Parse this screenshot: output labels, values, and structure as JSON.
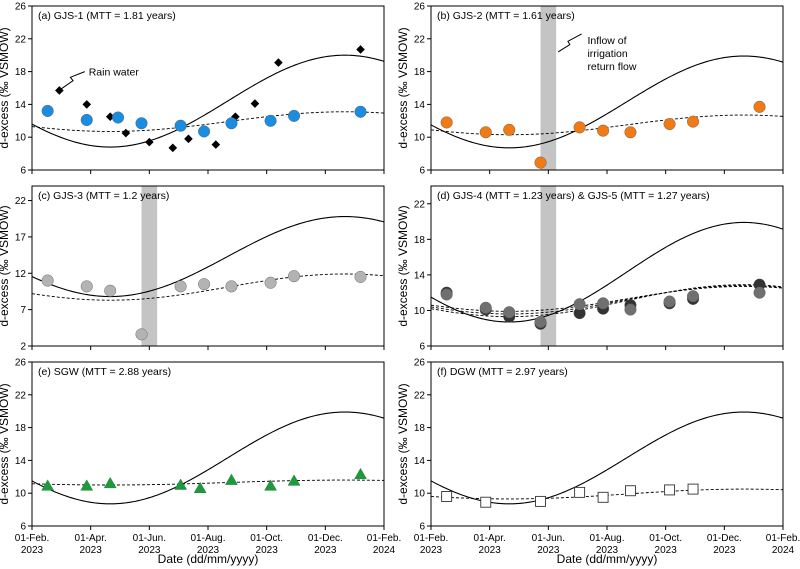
{
  "figure": {
    "x_axis_label": "Date (dd/mm/yyyy)",
    "y_axis_label": "d-excess (‰ VSMOW)"
  },
  "x_ticks": [
    {
      "t": 0,
      "line1": "01-Feb.",
      "line2": "2023"
    },
    {
      "t": 1.5,
      "line1": "01-Apr.",
      "line2": "2023"
    },
    {
      "t": 3,
      "line1": "01-Jun.",
      "line2": "2023"
    },
    {
      "t": 4.5,
      "line1": "01-Aug.",
      "line2": "2023"
    },
    {
      "t": 6,
      "line1": "01-Oct.",
      "line2": "2023"
    },
    {
      "t": 7.5,
      "line1": "01-Dec.",
      "line2": "2023"
    },
    {
      "t": 9,
      "line1": "01-Feb.",
      "line2": "2024"
    }
  ],
  "chart_data": [
    {
      "id": "a",
      "type": "scatter",
      "title": "(a) GJS-1 (MTT = 1.81 years)",
      "ylim": [
        6,
        26
      ],
      "yticks": [
        6,
        10,
        14,
        18,
        22,
        26
      ],
      "annotations": [
        {
          "text": "Rain water"
        }
      ],
      "series": [
        {
          "name": "Rain water",
          "marker": "diamond",
          "color": "#000000",
          "x": [
            0.7,
            1.4,
            2.0,
            2.4,
            3.0,
            3.6,
            4.0,
            4.7,
            5.2,
            5.7,
            6.3,
            8.4
          ],
          "y": [
            15.7,
            14.0,
            12.5,
            10.5,
            9.4,
            8.7,
            9.8,
            9.1,
            12.5,
            14.1,
            19.1,
            20.7
          ]
        },
        {
          "name": "GJS-1",
          "marker": "circle",
          "color": "#1a8de0",
          "x": [
            0.4,
            1.4,
            2.2,
            2.8,
            3.8,
            4.4,
            5.1,
            6.1,
            6.7,
            8.4
          ],
          "y": [
            13.2,
            12.1,
            12.4,
            11.7,
            11.4,
            10.7,
            11.7,
            12.0,
            12.6,
            13.1
          ]
        }
      ]
    },
    {
      "id": "b",
      "type": "scatter",
      "title": "(b) GJS-2 (MTT = 1.61 years)",
      "ylim": [
        6,
        26
      ],
      "yticks": [
        6,
        10,
        14,
        18,
        22,
        26
      ],
      "annotations": [
        {
          "text": "Inflow of"
        },
        {
          "text": "irrigation"
        },
        {
          "text": "return flow"
        }
      ],
      "series": [
        {
          "name": "GJS-2",
          "marker": "circle",
          "color": "#f07a16",
          "x": [
            0.4,
            1.4,
            2.0,
            2.8,
            3.8,
            4.4,
            5.1,
            6.1,
            6.7,
            8.4
          ],
          "y": [
            11.8,
            10.6,
            10.9,
            6.9,
            11.2,
            10.8,
            10.6,
            11.6,
            11.9,
            13.7
          ]
        }
      ]
    },
    {
      "id": "c",
      "type": "scatter",
      "title": "(c) GJS-3 (MTT = 1.2 years)",
      "ylim": [
        2,
        24
      ],
      "yticks": [
        2,
        7,
        12,
        17,
        22
      ],
      "series": [
        {
          "name": "GJS-3",
          "marker": "circle",
          "color": "#b3b3b3",
          "x": [
            0.4,
            1.4,
            2.0,
            2.8,
            3.8,
            4.4,
            5.1,
            6.1,
            6.7,
            8.4
          ],
          "y": [
            11.0,
            10.2,
            9.6,
            3.6,
            10.2,
            10.5,
            10.2,
            10.7,
            11.6,
            11.5
          ]
        }
      ]
    },
    {
      "id": "d",
      "type": "scatter",
      "title": "(d) GJS-4 (MTT = 1.23 years) & GJS-5 (MTT = 1.27 years)",
      "ylim": [
        6,
        24
      ],
      "yticks": [
        6,
        10,
        14,
        18,
        22
      ],
      "series": [
        {
          "name": "GJS-4",
          "marker": "circle",
          "color": "#333333",
          "x": [
            0.4,
            1.4,
            2.0,
            2.8,
            3.8,
            4.4,
            5.1,
            6.1,
            6.7,
            8.4
          ],
          "y": [
            12.0,
            10.1,
            9.3,
            8.5,
            9.7,
            10.2,
            10.6,
            10.8,
            11.3,
            12.9
          ]
        },
        {
          "name": "GJS-5",
          "marker": "circle",
          "color": "#707070",
          "x": [
            0.4,
            1.4,
            2.0,
            2.8,
            3.8,
            4.4,
            5.1,
            6.1,
            6.7,
            8.4
          ],
          "y": [
            11.8,
            10.3,
            9.8,
            8.7,
            10.7,
            10.8,
            10.1,
            11.0,
            11.6,
            12.0
          ]
        }
      ]
    },
    {
      "id": "e",
      "type": "scatter",
      "title": "(e) SGW (MTT = 2.88 years)",
      "ylim": [
        6,
        26
      ],
      "yticks": [
        6,
        10,
        14,
        18,
        22,
        26
      ],
      "series": [
        {
          "name": "SGW",
          "marker": "triangle",
          "color": "#1c9a3c",
          "x": [
            0.4,
            1.4,
            2.0,
            3.8,
            4.3,
            5.1,
            6.1,
            6.7,
            8.4
          ],
          "y": [
            10.9,
            10.9,
            11.2,
            11.0,
            10.6,
            11.6,
            10.9,
            11.5,
            12.3
          ]
        }
      ]
    },
    {
      "id": "f",
      "type": "scatter",
      "title": "(f) DGW (MTT = 2.97 years)",
      "ylim": [
        6,
        26
      ],
      "yticks": [
        6,
        10,
        14,
        18,
        22,
        26
      ],
      "series": [
        {
          "name": "DGW",
          "marker": "square",
          "color": "#ffffff",
          "x": [
            0.4,
            1.4,
            2.8,
            3.8,
            4.4,
            5.1,
            6.1,
            6.7
          ],
          "y": [
            9.6,
            8.9,
            9.0,
            10.1,
            9.5,
            10.3,
            10.4,
            10.5
          ]
        }
      ]
    }
  ]
}
